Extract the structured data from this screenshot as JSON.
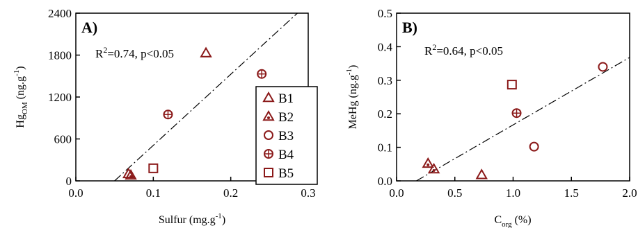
{
  "chart_data": [
    {
      "type": "scatter",
      "panel_label": "A)",
      "title": "",
      "xlabel": "Sulfur (mg.g",
      "xlabel_sup": "-1",
      "xlabel_end": ")",
      "ylabel": "Hg",
      "ylabel_sub": "OM",
      "ylabel_rest": " (ng.g",
      "ylabel_sup": "-1",
      "ylabel_end": ")",
      "xlim": [
        0.0,
        0.3
      ],
      "ylim": [
        0,
        2400
      ],
      "xticks": [
        "0.0",
        "0.1",
        "0.2",
        "0.3"
      ],
      "yticks": [
        "0",
        "600",
        "1200",
        "1800",
        "2400"
      ],
      "annotation": {
        "pre": "R",
        "sup": "2",
        "post": "=0.74, p<0.05"
      },
      "trendline": {
        "x": [
          0.05,
          0.286
        ],
        "y": [
          0,
          2400
        ]
      },
      "legend": [
        {
          "label": "B1",
          "marker": "triangle"
        },
        {
          "label": "B2",
          "marker": "triangle-dot"
        },
        {
          "label": "B3",
          "marker": "circle"
        },
        {
          "label": "B4",
          "marker": "circle-plus"
        },
        {
          "label": "B5",
          "marker": "square"
        }
      ],
      "points": [
        {
          "series": "B1",
          "marker": "triangle",
          "x": 0.168,
          "y": 1830
        },
        {
          "series": "B1",
          "marker": "triangle",
          "x": 0.068,
          "y": 100
        },
        {
          "series": "B2",
          "marker": "triangle-dot",
          "x": 0.071,
          "y": 80
        },
        {
          "series": "B4",
          "marker": "circle-plus",
          "x": 0.24,
          "y": 1530
        },
        {
          "series": "B4",
          "marker": "circle-plus",
          "x": 0.119,
          "y": 950
        },
        {
          "series": "B5",
          "marker": "square",
          "x": 0.1,
          "y": 180
        }
      ]
    },
    {
      "type": "scatter",
      "panel_label": "B)",
      "title": "",
      "xlabel": "C",
      "xlabel_sub": "org",
      "xlabel_end": "    (%)",
      "ylabel": "MeHg (ng.g",
      "ylabel_sup": "-1",
      "ylabel_end": ")",
      "xlim": [
        0.0,
        2.0
      ],
      "ylim": [
        0.0,
        0.5
      ],
      "xticks": [
        "0.0",
        "0.5",
        "1.0",
        "1.5",
        "2.0"
      ],
      "yticks": [
        "0.0",
        "0.1",
        "0.2",
        "0.3",
        "0.4",
        "0.5"
      ],
      "annotation": {
        "pre": "R",
        "sup": "2",
        "post": "=0.64, p<0.05"
      },
      "trendline": {
        "x": [
          0.17,
          2.0
        ],
        "y": [
          0.0,
          0.368
        ]
      },
      "points": [
        {
          "series": "B1",
          "marker": "triangle",
          "x": 0.73,
          "y": 0.018
        },
        {
          "series": "B2",
          "marker": "triangle-dot",
          "x": 0.27,
          "y": 0.052
        },
        {
          "series": "B2",
          "marker": "triangle-dot",
          "x": 0.32,
          "y": 0.035
        },
        {
          "series": "B3",
          "marker": "circle",
          "x": 1.77,
          "y": 0.34
        },
        {
          "series": "B3",
          "marker": "circle",
          "x": 1.18,
          "y": 0.102
        },
        {
          "series": "B4",
          "marker": "circle-plus",
          "x": 1.03,
          "y": 0.202
        },
        {
          "series": "B5",
          "marker": "square",
          "x": 0.99,
          "y": 0.287
        }
      ]
    }
  ],
  "colors": {
    "marker": "#8b1a1a",
    "axis": "#000000",
    "trend": "#000000"
  }
}
